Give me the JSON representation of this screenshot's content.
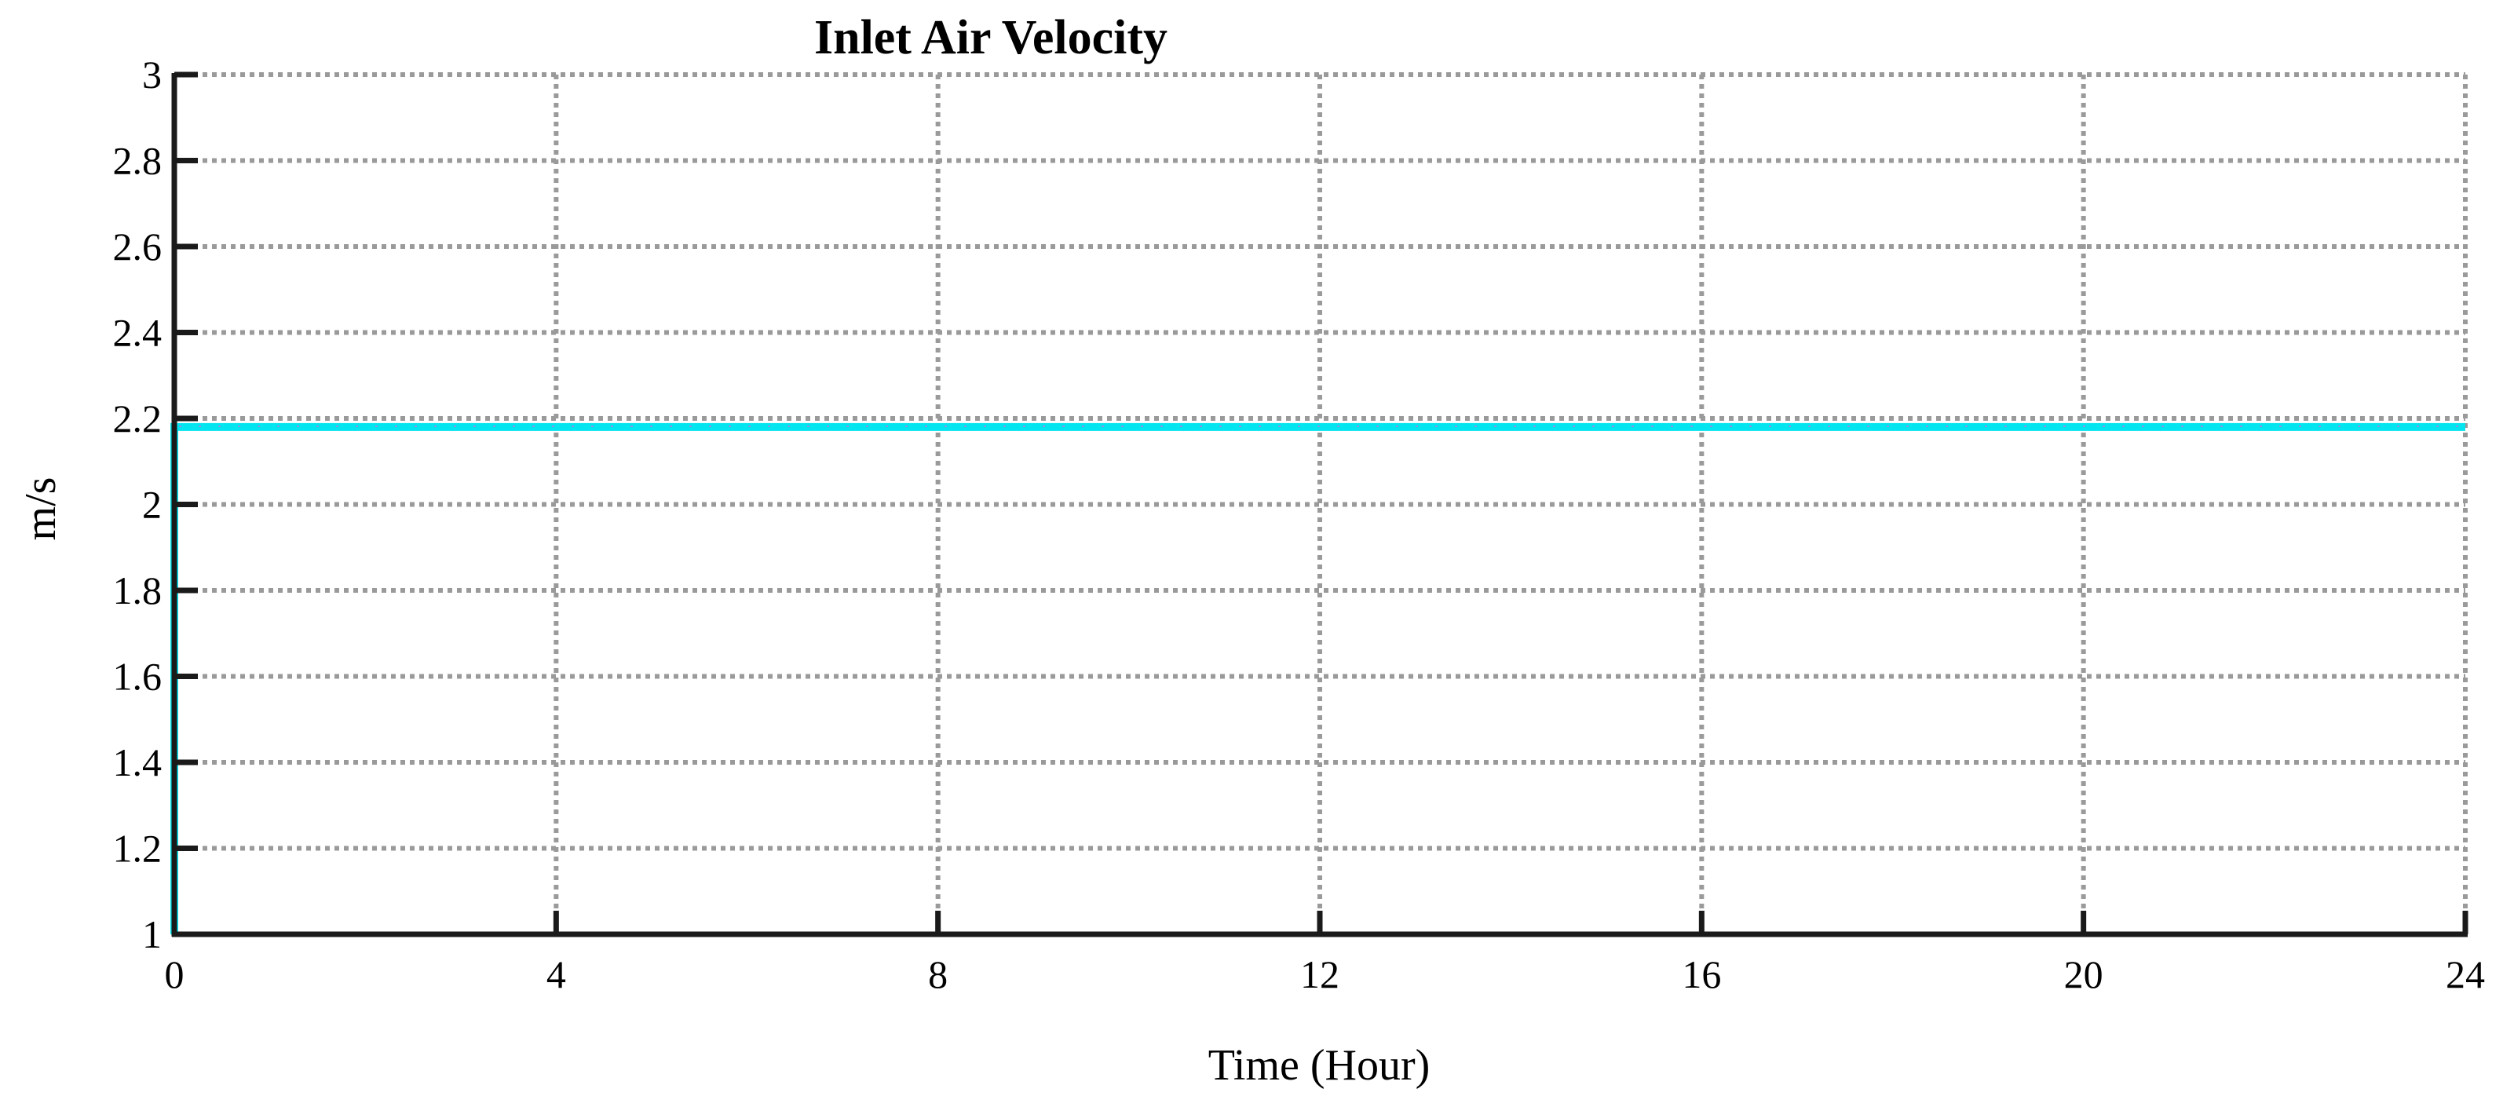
{
  "chart_data": {
    "type": "line",
    "title": "Inlet Air Velocity",
    "xlabel": "Time (Hour)",
    "ylabel": "m/s",
    "xlim": [
      0,
      24
    ],
    "ylim": [
      1,
      3
    ],
    "xticks": [
      0,
      4,
      8,
      12,
      16,
      20,
      24
    ],
    "yticks": [
      1,
      1.2,
      1.4,
      1.6,
      1.8,
      2,
      2.2,
      2.4,
      2.6,
      2.8,
      3
    ],
    "xtick_labels": [
      "0",
      "4",
      "8",
      "12",
      "16",
      "20",
      "24"
    ],
    "ytick_labels": [
      "1",
      "1.2",
      "1.4",
      "1.6",
      "1.8",
      "2",
      "2.2",
      "2.4",
      "2.6",
      "2.8",
      "3"
    ],
    "grid": true,
    "grid_style": "dotted",
    "series": [
      {
        "color": "#00e5f0",
        "x": [
          0,
          0,
          2,
          4,
          6,
          8,
          10,
          12,
          14,
          16,
          18,
          20,
          22,
          24
        ],
        "y": [
          1,
          2.18,
          2.18,
          2.18,
          2.18,
          2.18,
          2.18,
          2.18,
          2.18,
          2.18,
          2.18,
          2.18,
          2.18,
          2.18
        ]
      }
    ],
    "colors": {
      "series": "#00e5f0",
      "grid": "#9a9a9a",
      "axis": "#1a1a1a",
      "noise": "#c86edc"
    }
  }
}
